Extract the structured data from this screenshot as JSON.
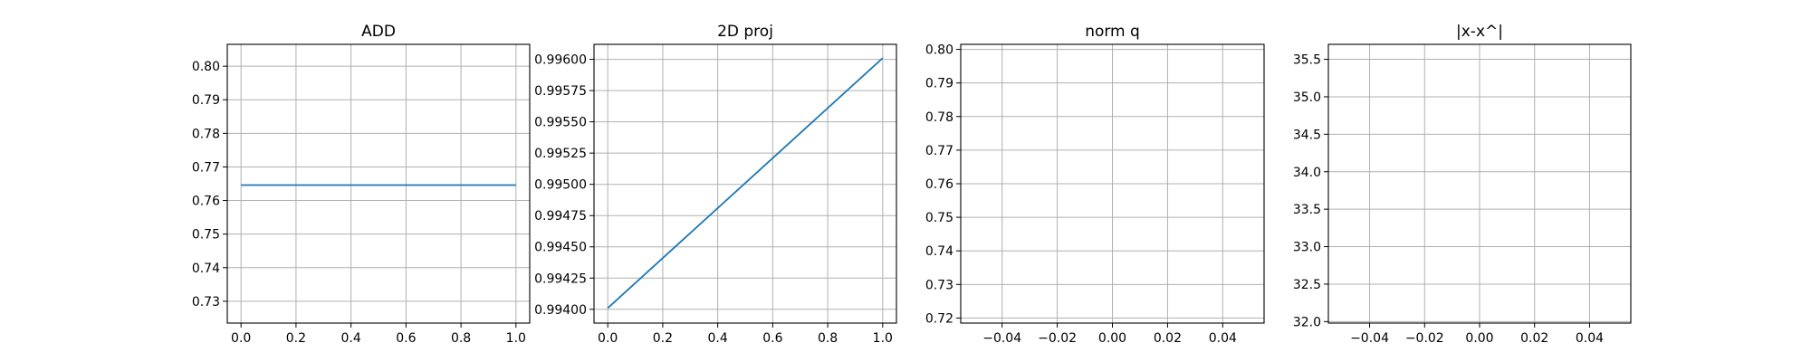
{
  "chart_data": [
    {
      "type": "line",
      "title": "ADD",
      "xlabel": "",
      "ylabel": "",
      "xlim": [
        -0.05,
        1.05
      ],
      "ylim": [
        0.7235,
        0.8065
      ],
      "grid": true,
      "xticks": [
        0.0,
        0.2,
        0.4,
        0.6,
        0.8,
        1.0
      ],
      "xtick_labels": [
        "0.0",
        "0.2",
        "0.4",
        "0.6",
        "0.8",
        "1.0"
      ],
      "yticks": [
        0.73,
        0.74,
        0.75,
        0.76,
        0.77,
        0.78,
        0.79,
        0.8
      ],
      "ytick_labels": [
        "0.73",
        "0.74",
        "0.75",
        "0.76",
        "0.77",
        "0.78",
        "0.79",
        "0.80"
      ],
      "series": [
        {
          "x": [
            0.0,
            1.0
          ],
          "y": [
            0.7646,
            0.7646
          ],
          "color": "#1f77b4"
        }
      ]
    },
    {
      "type": "line",
      "title": "2D proj",
      "xlabel": "",
      "ylabel": "",
      "xlim": [
        -0.05,
        1.05
      ],
      "ylim": [
        0.99389,
        0.99612
      ],
      "grid": true,
      "xticks": [
        0.0,
        0.2,
        0.4,
        0.6,
        0.8,
        1.0
      ],
      "xtick_labels": [
        "0.0",
        "0.2",
        "0.4",
        "0.6",
        "0.8",
        "1.0"
      ],
      "yticks": [
        0.994,
        0.99425,
        0.9945,
        0.99475,
        0.995,
        0.99525,
        0.9955,
        0.99575,
        0.996
      ],
      "ytick_labels": [
        "0.99400",
        "0.99425",
        "0.99450",
        "0.99475",
        "0.99500",
        "0.99525",
        "0.99550",
        "0.99575",
        "0.99600"
      ],
      "series": [
        {
          "x": [
            0.0,
            1.0
          ],
          "y": [
            0.99401,
            0.99601
          ],
          "color": "#1f77b4"
        }
      ]
    },
    {
      "type": "line",
      "title": "norm q",
      "xlabel": "",
      "ylabel": "",
      "xlim": [
        -0.055,
        0.055
      ],
      "ylim": [
        0.7185,
        0.8015
      ],
      "grid": true,
      "xticks": [
        -0.04,
        -0.02,
        0.0,
        0.02,
        0.04
      ],
      "xtick_labels": [
        "−0.04",
        "−0.02",
        "0.00",
        "0.02",
        "0.04"
      ],
      "yticks": [
        0.72,
        0.73,
        0.74,
        0.75,
        0.76,
        0.77,
        0.78,
        0.79,
        0.8
      ],
      "ytick_labels": [
        "0.72",
        "0.73",
        "0.74",
        "0.75",
        "0.76",
        "0.77",
        "0.78",
        "0.79",
        "0.80"
      ],
      "series": []
    },
    {
      "type": "line",
      "title": "|x-x^|",
      "xlabel": "",
      "ylabel": "",
      "xlim": [
        -0.055,
        0.055
      ],
      "ylim": [
        31.98,
        35.7
      ],
      "grid": true,
      "xticks": [
        -0.04,
        -0.02,
        0.0,
        0.02,
        0.04
      ],
      "xtick_labels": [
        "−0.04",
        "−0.02",
        "0.00",
        "0.02",
        "0.04"
      ],
      "yticks": [
        32.0,
        32.5,
        33.0,
        33.5,
        34.0,
        34.5,
        35.0,
        35.5
      ],
      "ytick_labels": [
        "32.0",
        "32.5",
        "33.0",
        "33.5",
        "34.0",
        "34.5",
        "35.0",
        "35.5"
      ],
      "series": []
    }
  ]
}
